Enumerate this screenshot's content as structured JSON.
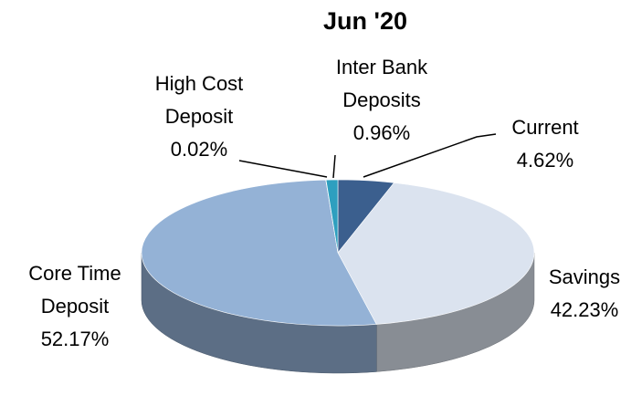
{
  "chart_data": {
    "type": "pie",
    "title": "Jun '20",
    "categories": [
      "Current",
      "Savings",
      "Core Time Deposit",
      "High Cost Deposit",
      "Inter Bank Deposits"
    ],
    "values": [
      4.62,
      42.23,
      52.17,
      0.02,
      0.96
    ],
    "value_labels": [
      "4.62%",
      "42.23%",
      "52.17%",
      "0.02%",
      "0.96%"
    ],
    "colors": [
      "#3b5f8e",
      "#dbe3ef",
      "#94b2d6",
      "#4bacc6",
      "#2e9fbf"
    ]
  }
}
